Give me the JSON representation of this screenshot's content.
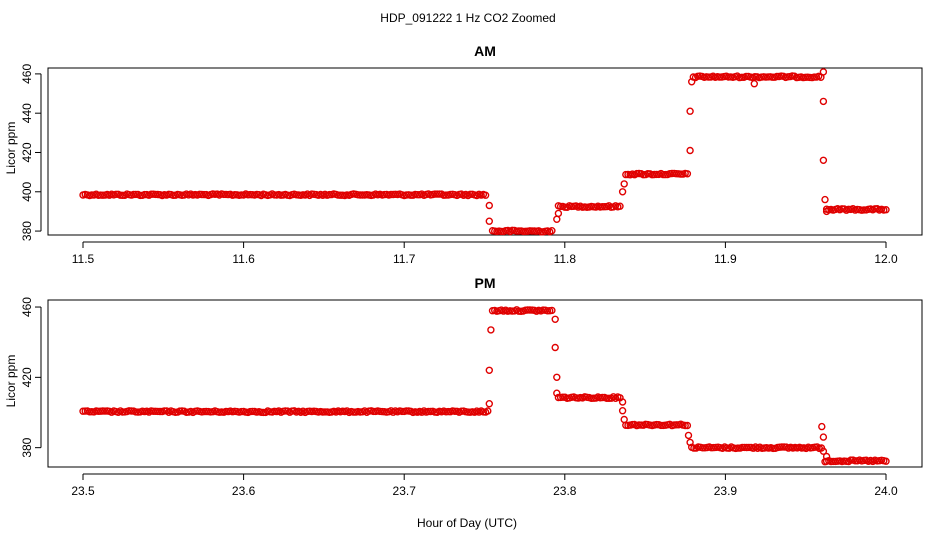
{
  "chart_data": {
    "title": "HDP_091222  1 Hz CO2 Zoomed",
    "xlabel": "Hour of Day (UTC)",
    "point_color": "#e00000",
    "panels": [
      {
        "type": "scatter",
        "title": "AM",
        "ylabel": "Licor ppm",
        "xlim": [
          11.5,
          12.0
        ],
        "ylim": [
          378,
          463
        ],
        "xticks": [
          "11.5",
          "11.6",
          "11.7",
          "11.8",
          "11.9",
          "12.0"
        ],
        "yticks": [
          "380",
          "400",
          "420",
          "440",
          "460"
        ],
        "segments": [
          {
            "x": [
              11.5,
              11.752
            ],
            "y": 398.5
          },
          {
            "x": [
              11.755,
              11.793
            ],
            "y": 380
          },
          {
            "x": [
              11.796,
              11.835
            ],
            "y": 392.5
          },
          {
            "x": [
              11.838,
              11.877
            ],
            "y": 409
          },
          {
            "x": [
              11.88,
              11.96
            ],
            "y": 458.5
          },
          {
            "x": [
              11.963,
              12.0
            ],
            "y": 391
          }
        ],
        "transitions": [
          {
            "x": 11.753,
            "y": 393
          },
          {
            "x": 11.753,
            "y": 385
          },
          {
            "x": 11.795,
            "y": 386
          },
          {
            "x": 11.796,
            "y": 389
          },
          {
            "x": 11.836,
            "y": 400
          },
          {
            "x": 11.837,
            "y": 404
          },
          {
            "x": 11.878,
            "y": 441
          },
          {
            "x": 11.878,
            "y": 421
          },
          {
            "x": 11.879,
            "y": 456
          },
          {
            "x": 11.918,
            "y": 455
          },
          {
            "x": 11.961,
            "y": 461
          },
          {
            "x": 11.961,
            "y": 446
          },
          {
            "x": 11.961,
            "y": 416
          },
          {
            "x": 11.962,
            "y": 396
          },
          {
            "x": 11.963,
            "y": 390
          }
        ]
      },
      {
        "type": "scatter",
        "title": "PM",
        "ylabel": "Licor ppm",
        "xlim": [
          23.5,
          24.0
        ],
        "ylim": [
          369,
          464
        ],
        "xticks": [
          "23.5",
          "23.6",
          "23.7",
          "23.8",
          "23.9",
          "24.0"
        ],
        "yticks": [
          "380",
          "420",
          "460"
        ],
        "segments": [
          {
            "x": [
              23.5,
              23.753
            ],
            "y": 400.5
          },
          {
            "x": [
              23.755,
              23.793
            ],
            "y": 458
          },
          {
            "x": [
              23.796,
              23.835
            ],
            "y": 408.5
          },
          {
            "x": [
              23.838,
              23.877
            ],
            "y": 393
          },
          {
            "x": [
              23.879,
              23.96
            ],
            "y": 380
          },
          {
            "x": [
              23.963,
              24.0
            ],
            "y": 372.5
          }
        ],
        "transitions": [
          {
            "x": 23.753,
            "y": 405
          },
          {
            "x": 23.753,
            "y": 424
          },
          {
            "x": 23.754,
            "y": 447
          },
          {
            "x": 23.794,
            "y": 453
          },
          {
            "x": 23.794,
            "y": 437
          },
          {
            "x": 23.795,
            "y": 420
          },
          {
            "x": 23.795,
            "y": 411
          },
          {
            "x": 23.836,
            "y": 406
          },
          {
            "x": 23.836,
            "y": 401
          },
          {
            "x": 23.837,
            "y": 396
          },
          {
            "x": 23.877,
            "y": 387
          },
          {
            "x": 23.878,
            "y": 383
          },
          {
            "x": 23.96,
            "y": 392
          },
          {
            "x": 23.961,
            "y": 386
          },
          {
            "x": 23.961,
            "y": 378
          },
          {
            "x": 23.962,
            "y": 372
          },
          {
            "x": 23.963,
            "y": 375
          }
        ]
      }
    ]
  }
}
